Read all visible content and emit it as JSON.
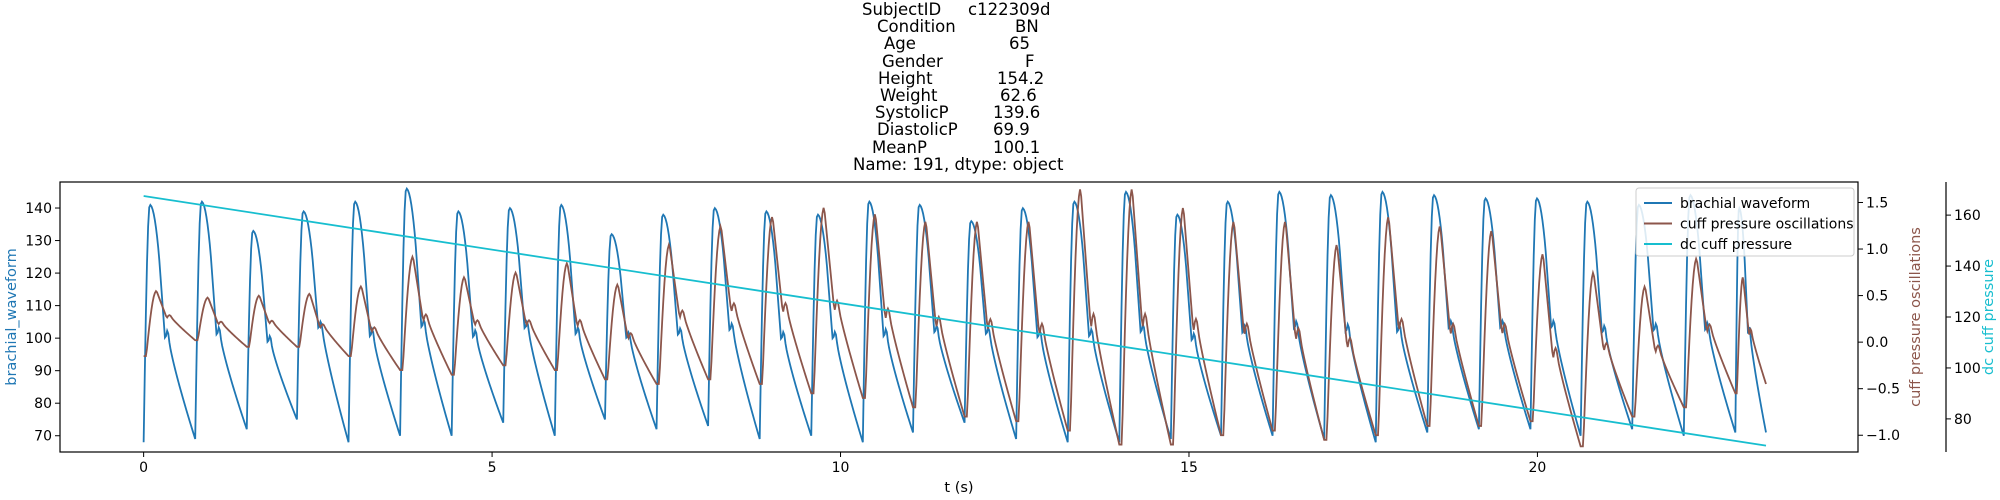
{
  "title_lines": [
    {
      "key": "SubjectID",
      "value": "c122309d"
    },
    {
      "key": "Condition",
      "value": "BN"
    },
    {
      "key": "Age",
      "value": "65"
    },
    {
      "key": "Gender",
      "value": "F"
    },
    {
      "key": "Height",
      "value": "154.2"
    },
    {
      "key": "Weight",
      "value": "62.6"
    },
    {
      "key": "SystolicP",
      "value": "139.6"
    },
    {
      "key": "DiastolicP",
      "value": "69.9"
    },
    {
      "key": "MeanP",
      "value": "100.1"
    },
    {
      "key": "footer",
      "value": "Name: 191, dtype: object"
    }
  ],
  "chart_data": {
    "type": "line",
    "xlabel": "t (s)",
    "xlim": [
      -1.2,
      24.6
    ],
    "x_ticks": [
      0,
      5,
      10,
      15,
      20
    ],
    "grid": false,
    "legend_placement": "top-right",
    "axes": {
      "left": {
        "label": "brachial_waveform",
        "ylim": [
          65,
          148
        ],
        "ticks": [
          70,
          80,
          90,
          100,
          110,
          120,
          130,
          140
        ],
        "color": "#1f77b4"
      },
      "right1": {
        "label": "cuff pressure oscillations",
        "ylim": [
          -1.18,
          1.72
        ],
        "ticks": [
          -1.0,
          -0.5,
          0.0,
          0.5,
          1.0,
          1.5
        ],
        "color": "#8c564b"
      },
      "right2": {
        "label": "dc cuff pressure",
        "ylim": [
          67,
          173
        ],
        "ticks": [
          80,
          100,
          120,
          140,
          160
        ],
        "color": "#17becf"
      }
    },
    "series": [
      {
        "name": "brachial waveform",
        "axis": "left",
        "color": "#1f77b4",
        "beat_onsets": [
          0.0,
          0.74,
          1.48,
          2.2,
          2.94,
          3.68,
          4.42,
          5.16,
          5.9,
          6.62,
          7.36,
          8.1,
          8.84,
          9.58,
          10.32,
          11.04,
          11.78,
          12.52,
          13.26,
          14.0,
          14.74,
          15.46,
          16.2,
          16.94,
          17.68,
          18.42,
          19.16,
          19.9,
          20.62,
          21.36,
          22.1,
          22.84
        ],
        "beat_peaks": [
          141,
          142,
          133,
          139,
          142,
          146,
          139,
          140,
          141,
          132,
          138,
          140,
          139,
          138,
          142,
          141,
          136,
          140,
          142,
          145,
          138,
          142,
          145,
          144,
          145,
          144,
          143,
          143,
          142,
          141,
          144,
          140
        ],
        "beat_troughs": [
          68,
          69,
          72,
          75,
          68,
          70,
          70,
          74,
          70,
          75,
          72,
          73,
          69,
          70,
          68,
          71,
          74,
          69,
          68,
          68,
          69,
          70,
          70,
          69,
          68,
          71,
          72,
          72,
          70,
          72,
          70,
          71
        ],
        "x_end": 23.28
      },
      {
        "name": "cuff pressure oscillations",
        "axis": "right1",
        "color": "#8c564b",
        "beat_peaks": [
          0.55,
          0.48,
          0.5,
          0.52,
          0.6,
          0.92,
          0.7,
          0.75,
          0.85,
          0.62,
          1.05,
          1.25,
          1.35,
          1.45,
          1.38,
          1.3,
          1.3,
          1.3,
          1.65,
          1.65,
          1.45,
          1.3,
          1.3,
          1.05,
          1.35,
          1.25,
          1.2,
          0.95,
          0.75,
          0.6,
          0.9,
          0.7
        ],
        "beat_troughs": [
          0.02,
          -0.05,
          -0.05,
          -0.15,
          -0.3,
          -0.35,
          -0.25,
          -0.3,
          -0.4,
          -0.45,
          -0.4,
          -0.45,
          -0.55,
          -0.6,
          -0.7,
          -0.8,
          -0.85,
          -0.95,
          -1.1,
          -1.1,
          -1.0,
          -0.95,
          -1.05,
          -1.0,
          -0.9,
          -0.9,
          -0.85,
          -1.12,
          -0.8,
          -0.7,
          -0.55,
          -0.45
        ],
        "start_value": -0.15,
        "end_value": -0.45
      },
      {
        "name": "dc cuff pressure",
        "axis": "right2",
        "color": "#17becf",
        "x": [
          0,
          23.28
        ],
        "y": [
          167.5,
          69.5
        ]
      }
    ]
  }
}
